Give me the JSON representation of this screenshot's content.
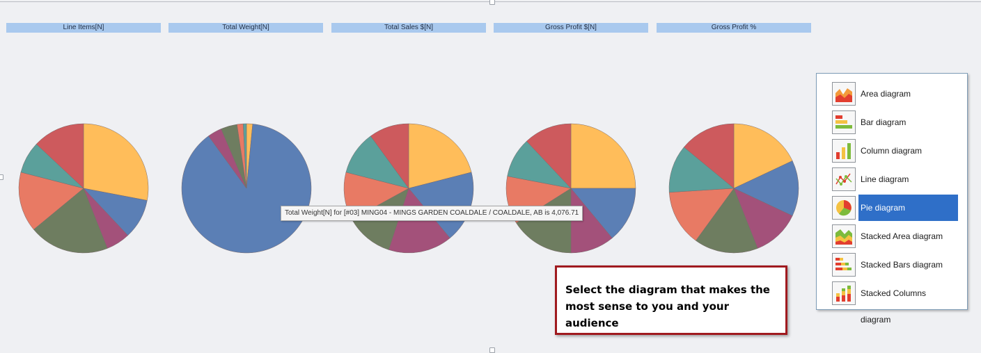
{
  "columns": [
    "Line Items[N]",
    "Total Weight[N]",
    "Total Sales $[N]",
    "Gross Profit $[N]",
    "Gross Profit %"
  ],
  "chart_data": [
    {
      "type": "pie",
      "title": "Line Items[N]",
      "values": [
        28,
        10,
        6,
        20,
        15,
        8,
        13
      ]
    },
    {
      "type": "pie",
      "title": "Total Weight[N]",
      "values": [
        1.5,
        87,
        3.5,
        4,
        1.5,
        0.8
      ]
    },
    {
      "type": "pie",
      "title": "Total Sales $[N]",
      "values": [
        21,
        18,
        16,
        12,
        12,
        11,
        10
      ]
    },
    {
      "type": "pie",
      "title": "Gross Profit $[N]",
      "values": [
        25,
        14,
        11,
        16,
        12,
        10,
        12
      ]
    },
    {
      "type": "pie",
      "title": "Gross Profit %",
      "values": [
        18,
        14,
        12,
        16,
        14,
        12,
        14
      ]
    }
  ],
  "slice_colors": [
    "#ffbd5a",
    "#5b7fb5",
    "#a3517a",
    "#6e7d60",
    "#e87a64",
    "#5ba09b",
    "#cd5a5d",
    "#ffbd5a"
  ],
  "tooltip": "Total Weight[N] for [#03] MING04 - MINGS GARDEN COALDALE / COALDALE, AB is 4,076.71",
  "callout": "Select the diagram that makes the most sense to you and your audience",
  "diagram_menu": [
    {
      "label": "Area diagram",
      "icon": "area-diagram-icon",
      "selected": false
    },
    {
      "label": "Bar diagram",
      "icon": "bar-diagram-icon",
      "selected": false
    },
    {
      "label": "Column diagram",
      "icon": "column-diagram-icon",
      "selected": false
    },
    {
      "label": "Line diagram",
      "icon": "line-diagram-icon",
      "selected": false
    },
    {
      "label": "Pie diagram",
      "icon": "pie-diagram-icon",
      "selected": true
    },
    {
      "label": "Stacked Area diagram",
      "icon": "stacked-area-diagram-icon",
      "selected": false
    },
    {
      "label": "Stacked Bars diagram",
      "icon": "stacked-bars-diagram-icon",
      "selected": false
    },
    {
      "label": "Stacked Columns diagram",
      "icon": "stacked-columns-diagram-icon",
      "selected": false
    }
  ]
}
